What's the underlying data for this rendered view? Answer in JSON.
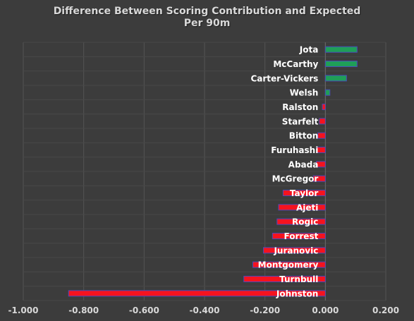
{
  "chart_data": {
    "type": "bar",
    "orientation": "horizontal",
    "title": [
      "Difference Between Scoring Contribution and Expected",
      "Per 90m"
    ],
    "xlabel": "",
    "ylabel": "",
    "xlim": [
      -1.0,
      0.2
    ],
    "xticks": [
      "-1.000",
      "-0.800",
      "-0.600",
      "-0.400",
      "-0.200",
      "0.000",
      "0.200"
    ],
    "grid": true,
    "categories": [
      "Jota",
      "McCarthy",
      "Carter-Vickers",
      "Welsh",
      "Ralston",
      "Starfelt",
      "Bitton",
      "Furuhashi",
      "Abada",
      "McGregor",
      "Taylor",
      "Ajeti",
      "Rogic",
      "Forrest",
      "Juranovic",
      "Montgomery",
      "Turnbull",
      "Johnston"
    ],
    "values": [
      0.105,
      0.105,
      0.07,
      0.015,
      -0.01,
      -0.02,
      -0.025,
      -0.028,
      -0.03,
      -0.04,
      -0.14,
      -0.155,
      -0.16,
      -0.175,
      -0.205,
      -0.24,
      -0.27,
      -0.85
    ],
    "colors": {
      "positive": "#1f9e58",
      "negative": "#f5131f",
      "bar_outline": "#4a4ab8",
      "gridline": "#555555",
      "text": "#ffffff",
      "tick_text": "#d9d9d9",
      "background": "#3c3c3c"
    }
  }
}
